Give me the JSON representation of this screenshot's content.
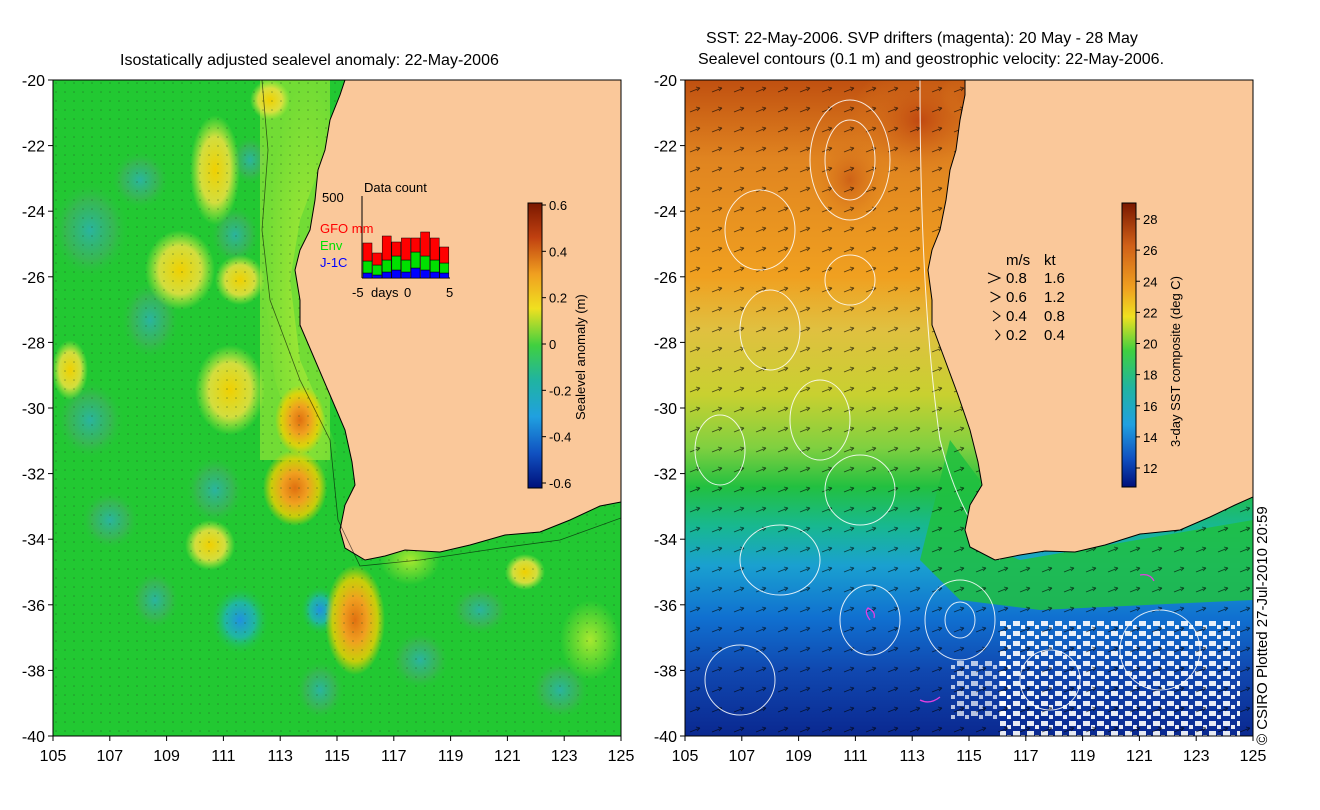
{
  "left_panel": {
    "title": "Isostatically adjusted sealevel anomaly: 22-May-2006",
    "x_ticks": [
      "105",
      "107",
      "109",
      "111",
      "113",
      "115",
      "117",
      "119",
      "121",
      "123",
      "125"
    ],
    "y_ticks": [
      "-20",
      "-22",
      "-24",
      "-26",
      "-28",
      "-30",
      "-32",
      "-34",
      "-36",
      "-38",
      "-40"
    ],
    "colorbar": {
      "label": "Sealevel anomaly (m)",
      "ticks": [
        "0.6",
        "0.4",
        "0.2",
        "0",
        "-0.2",
        "-0.4",
        "-0.6"
      ]
    },
    "data_count_inset": {
      "title": "Data count",
      "y_max": "500",
      "x_ticks": [
        "-5",
        "days",
        "0",
        "5"
      ],
      "legend": [
        {
          "label": "GFO mm",
          "color": "#ff0000"
        },
        {
          "label": "Env",
          "color": "#00e000"
        },
        {
          "label": "J-1C",
          "color": "#0000ff"
        }
      ]
    }
  },
  "right_panel": {
    "title_line1": "SST: 22-May-2006. SVP drifters (magenta): 20 May - 28 May",
    "title_line2": "Sealevel contours (0.1 m) and geostrophic velocity: 22-May-2006.",
    "x_ticks": [
      "105",
      "107",
      "109",
      "111",
      "113",
      "115",
      "117",
      "119",
      "121",
      "123",
      "125"
    ],
    "y_ticks": [
      "-20",
      "-22",
      "-24",
      "-26",
      "-28",
      "-30",
      "-32",
      "-34",
      "-36",
      "-38",
      "-40"
    ],
    "colorbar": {
      "label": "3-day SST composite (deg C)",
      "ticks": [
        "28",
        "26",
        "24",
        "22",
        "20",
        "18",
        "16",
        "14",
        "12"
      ]
    },
    "velocity_legend": {
      "header_ms": "m/s",
      "header_kt": "kt",
      "rows": [
        {
          "ms": "0.8",
          "kt": "1.6"
        },
        {
          "ms": "0.6",
          "kt": "1.2"
        },
        {
          "ms": "0.4",
          "kt": "0.8"
        },
        {
          "ms": "0.2",
          "kt": "0.4"
        }
      ]
    }
  },
  "credit": "© CSIRO Plotted 27-Jul-2010 20:59",
  "colors": {
    "land": "#fac89a",
    "sea_green": "#22c832"
  }
}
